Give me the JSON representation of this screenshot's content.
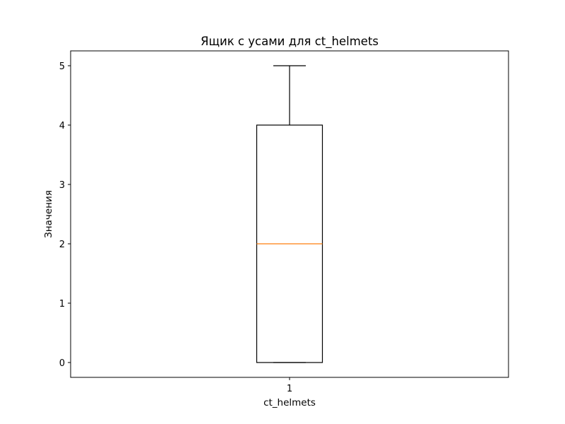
{
  "chart_data": {
    "type": "boxplot",
    "title": "Ящик с усами для ct_helmets",
    "xlabel": "ct_helmets",
    "ylabel": "Значения",
    "categories": [
      "1"
    ],
    "ylim": [
      -0.25,
      5.25
    ],
    "y_ticks": [
      "0",
      "1",
      "2",
      "3",
      "4",
      "5"
    ],
    "grid": false,
    "boxes": [
      {
        "label": "1",
        "whisker_low": 0,
        "q1": 0,
        "median": 2,
        "q3": 4,
        "whisker_high": 5
      }
    ],
    "colors": {
      "box": "#000000",
      "median": "#ff7f0e"
    }
  }
}
